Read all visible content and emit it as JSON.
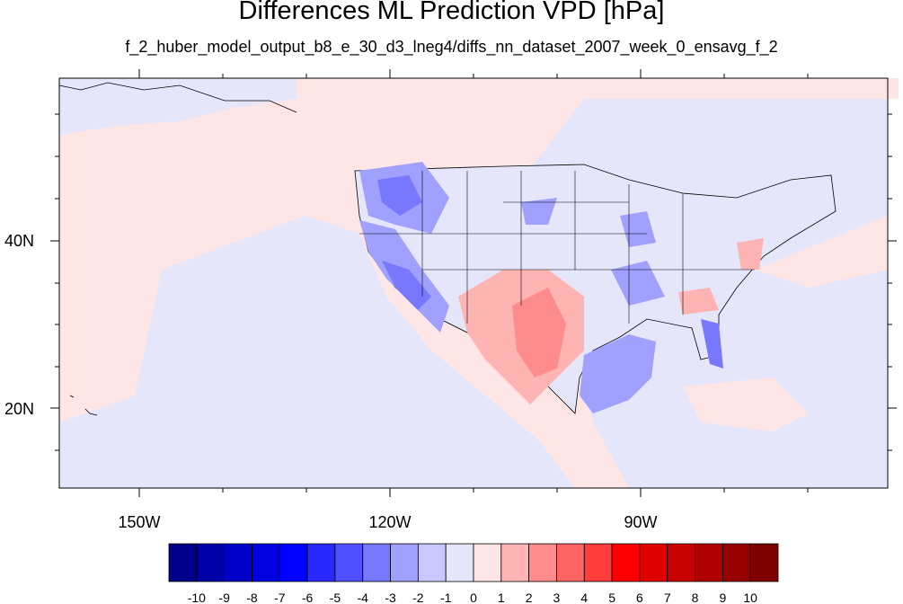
{
  "title": "Differences ML Prediction VPD [hPa]",
  "subtitle": "f_2_huber_model_output_b8_e_30_d3_lneg4/diffs_nn_dataset_2007_week_0_ensavg_f_2",
  "map": {
    "projection": "cylindrical-equidistant",
    "lon_range": [
      -160,
      -62
    ],
    "lat_range": [
      10.5,
      59
    ],
    "x_ticks": [
      "150W",
      "120W",
      "90W"
    ],
    "y_ticks": [
      "40N",
      "20N"
    ],
    "background_level": "0 to 1",
    "ocean_pacific_color": "#ffe6e6",
    "land_low_color": "#e6e6fa"
  },
  "colorbar": {
    "labels": [
      "-10",
      "-9",
      "-8",
      "-7",
      "-6",
      "-5",
      "-4",
      "-3",
      "-2",
      "-1",
      "0",
      "1",
      "2",
      "3",
      "4",
      "5",
      "6",
      "7",
      "8",
      "9",
      "10"
    ],
    "colors": [
      "#00008a",
      "#0000a8",
      "#0000c8",
      "#0000e0",
      "#0000ff",
      "#2828ff",
      "#5050ff",
      "#7878ff",
      "#a0a0ff",
      "#c8c8ff",
      "#e6e6fa",
      "#ffe6e6",
      "#ffb4b4",
      "#ff8c8c",
      "#ff6464",
      "#ff3c3c",
      "#ff0000",
      "#e00000",
      "#c80000",
      "#b00000",
      "#960000",
      "#800000"
    ]
  }
}
